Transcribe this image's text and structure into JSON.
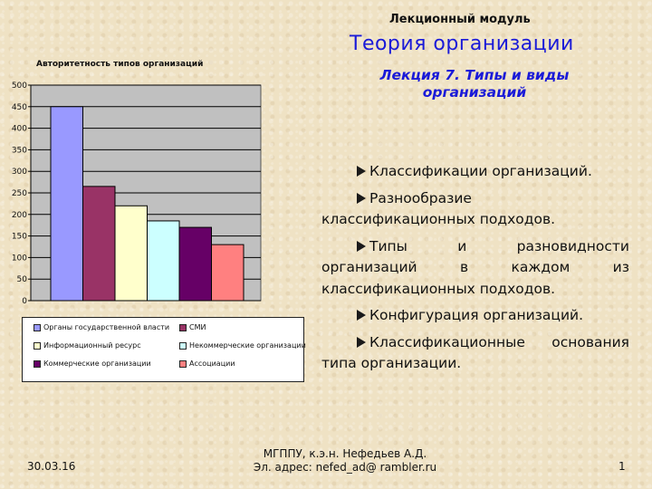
{
  "header": {
    "module": "Лекционный модуль",
    "theory": "Теория организации",
    "lecture": "Лекция 7. Типы и виды организаций"
  },
  "chart_data": {
    "type": "bar",
    "title": "Авторитетность типов организаций",
    "ylim": [
      0,
      500
    ],
    "yticks": [
      0,
      50,
      100,
      150,
      200,
      250,
      300,
      350,
      400,
      450,
      500
    ],
    "grid": true,
    "legend_position": "bottom",
    "series": [
      {
        "name": "Органы государственной власти",
        "value": 450,
        "color": "#9999ff"
      },
      {
        "name": "СМИ",
        "value": 265,
        "color": "#993366"
      },
      {
        "name": "Информационный ресурс",
        "value": 220,
        "color": "#ffffcc"
      },
      {
        "name": "Некоммерческие организации",
        "value": 185,
        "color": "#ccffff"
      },
      {
        "name": "Коммерческие организации",
        "value": 170,
        "color": "#660066"
      },
      {
        "name": "Ассоциации",
        "value": 130,
        "color": "#ff8080"
      }
    ]
  },
  "bullets": [
    "Классификации организаций.",
    "Разнообразие классификационных подходов.",
    "Типы и разновидности организаций в каждом из классификационных подходов.",
    "Конфигурация организаций.",
    "Классификационные основания типа организации."
  ],
  "footer": {
    "date": "30.03.16",
    "author": "МГППУ, к.э.н. Нефедьев А.Д.",
    "email": "Эл. адрес: nefed_ad@ rambler.ru",
    "page": "1"
  }
}
